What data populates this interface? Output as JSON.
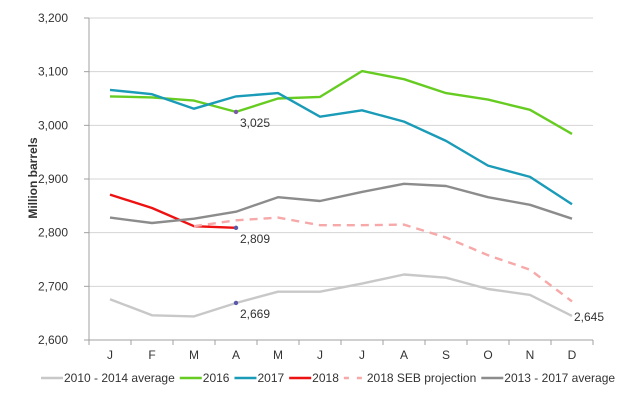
{
  "chart_data": {
    "type": "line",
    "title": "",
    "xlabel": "",
    "ylabel": "Million barrels",
    "ylim": [
      2600,
      3200
    ],
    "yticks": [
      2600,
      2700,
      2800,
      2900,
      3000,
      3100,
      3200
    ],
    "ytick_labels": [
      "2,600",
      "2,700",
      "2,800",
      "2,900",
      "3,000",
      "3,100",
      "3,200"
    ],
    "grid": true,
    "legend_position": "bottom",
    "categories": [
      "J",
      "F",
      "M",
      "A",
      "M",
      "J",
      "J",
      "A",
      "S",
      "O",
      "N",
      "D"
    ],
    "series": [
      {
        "name": "2010 - 2014 average",
        "color": "#c8c8c8",
        "dash": false,
        "values": [
          2676,
          2646,
          2644,
          2669,
          2690,
          2690,
          2705,
          2722,
          2716,
          2695,
          2684,
          2645
        ]
      },
      {
        "name": "2016",
        "color": "#66cc22",
        "dash": false,
        "values": [
          3054,
          3052,
          3046,
          3025,
          3050,
          3053,
          3101,
          3086,
          3060,
          3048,
          3029,
          2984
        ]
      },
      {
        "name": "2017",
        "color": "#1a9bb8",
        "dash": false,
        "values": [
          3066,
          3058,
          3031,
          3054,
          3060,
          3016,
          3028,
          3007,
          2971,
          2925,
          2904,
          2853
        ]
      },
      {
        "name": "2018",
        "color": "#ee1111",
        "dash": false,
        "values": [
          2871,
          2846,
          2812,
          2809,
          null,
          null,
          null,
          null,
          null,
          null,
          null,
          null
        ]
      },
      {
        "name": "2018 SEB projection",
        "color": "#f7a8a8",
        "dash": true,
        "values": [
          null,
          null,
          2812,
          2823,
          2828,
          2814,
          2814,
          2815,
          2791,
          2758,
          2731,
          2672
        ]
      },
      {
        "name": "2013 - 2017 average",
        "color": "#8c8c8c",
        "dash": false,
        "values": [
          2828,
          2818,
          2826,
          2839,
          2866,
          2859,
          2876,
          2891,
          2887,
          2866,
          2852,
          2826
        ]
      }
    ],
    "annotations": [
      {
        "series": "2016",
        "category_index": 3,
        "label": "3,025",
        "marker_color": "#7a5aa8"
      },
      {
        "series": "2018",
        "category_index": 3,
        "label": "2,809",
        "marker_color": "#5a5aa8"
      },
      {
        "series": "2010 - 2014 average",
        "category_index": 3,
        "label": "2,669",
        "marker_color": "#5a5aa8"
      },
      {
        "series": "2010 - 2014 average",
        "category_index": 11,
        "label": "2,645",
        "marker_color": null
      }
    ]
  }
}
